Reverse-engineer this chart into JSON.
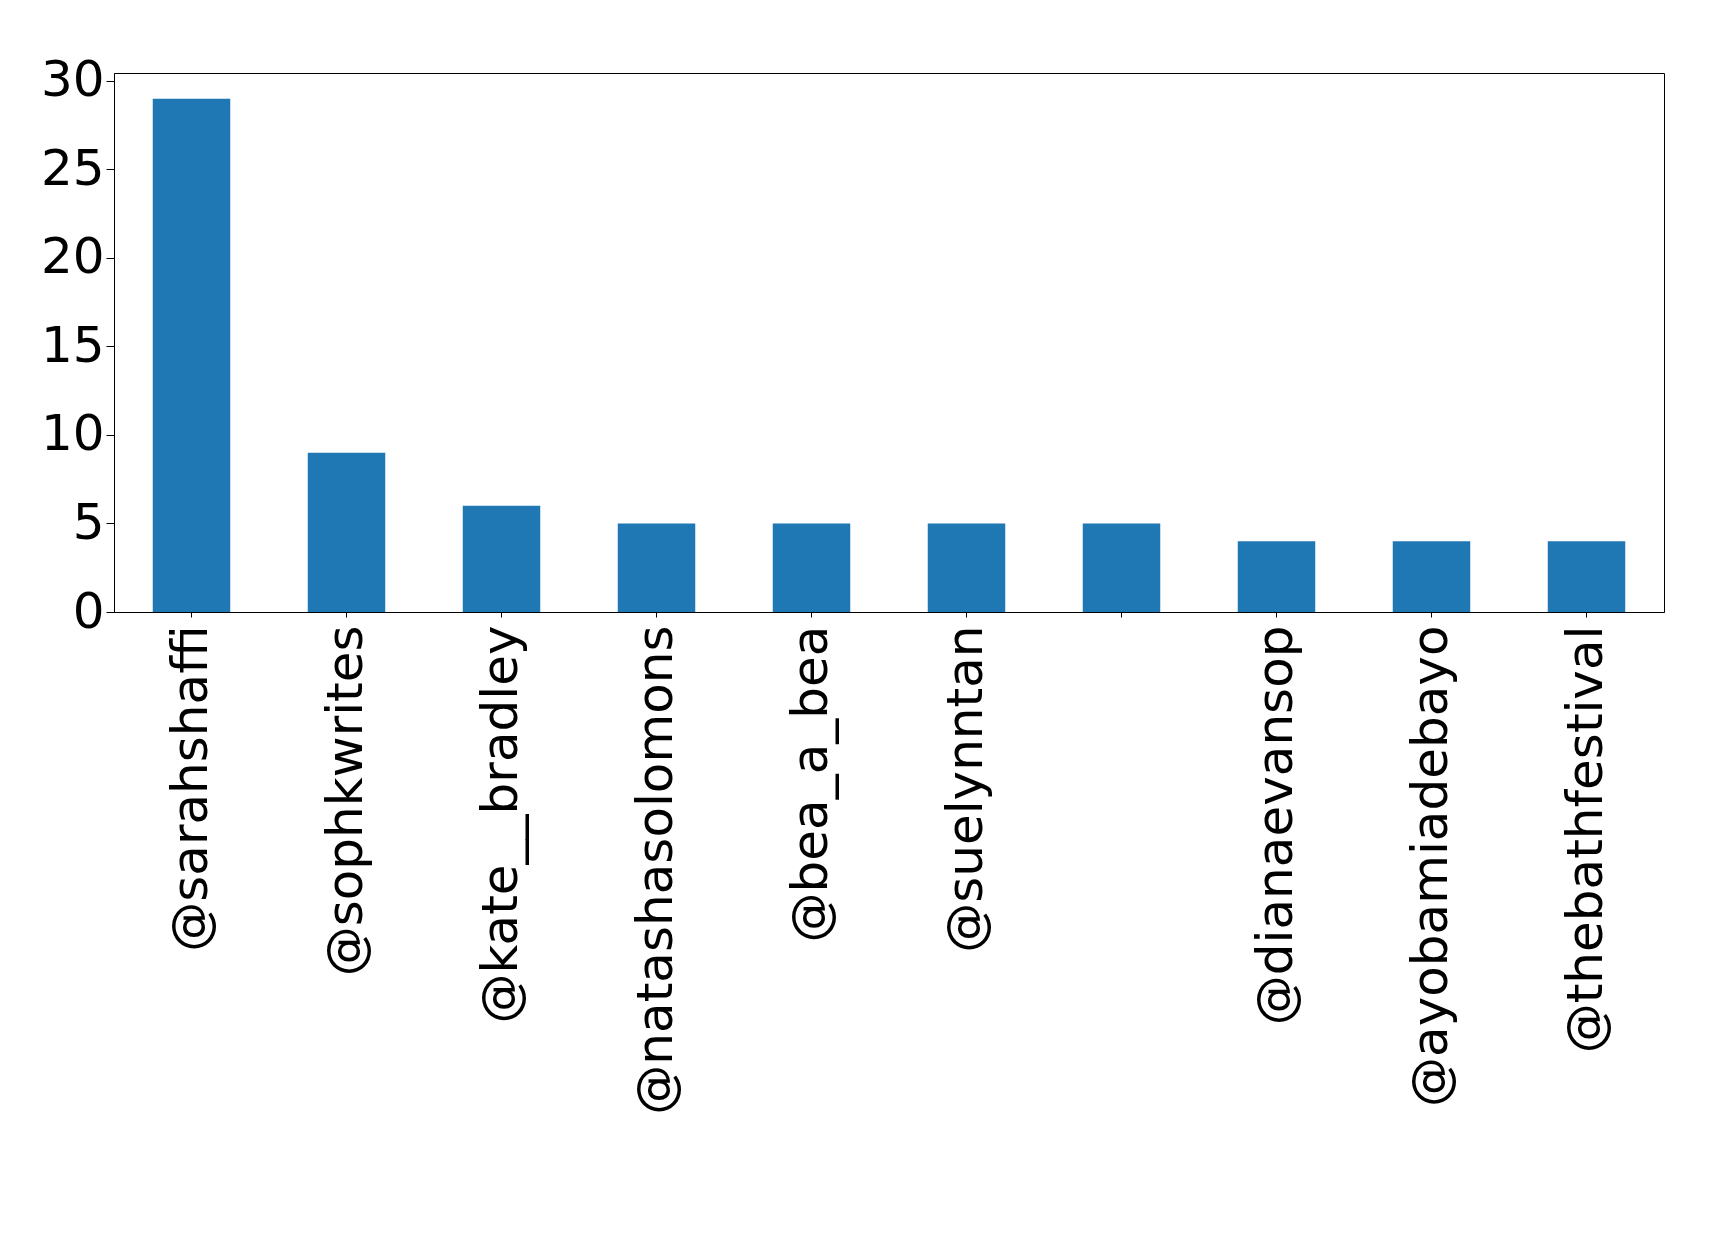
{
  "chart_data": {
    "type": "bar",
    "categories": [
      "@sarahshaffi",
      "@sophkwrites",
      "@kate__bradley",
      "@natashasolomons",
      "@bea_a_bea",
      "@suelynntan",
      null,
      "@dianaevansop",
      "@ayobamiadebayo",
      "@thebathfestival"
    ],
    "values": [
      29,
      9,
      6,
      5,
      5,
      5,
      5,
      4,
      4,
      4
    ],
    "color": "#1f77b4",
    "ylim": [
      0,
      30.45
    ],
    "yticks": [
      0,
      5,
      10,
      15,
      20,
      25,
      30
    ],
    "grid": false
  }
}
